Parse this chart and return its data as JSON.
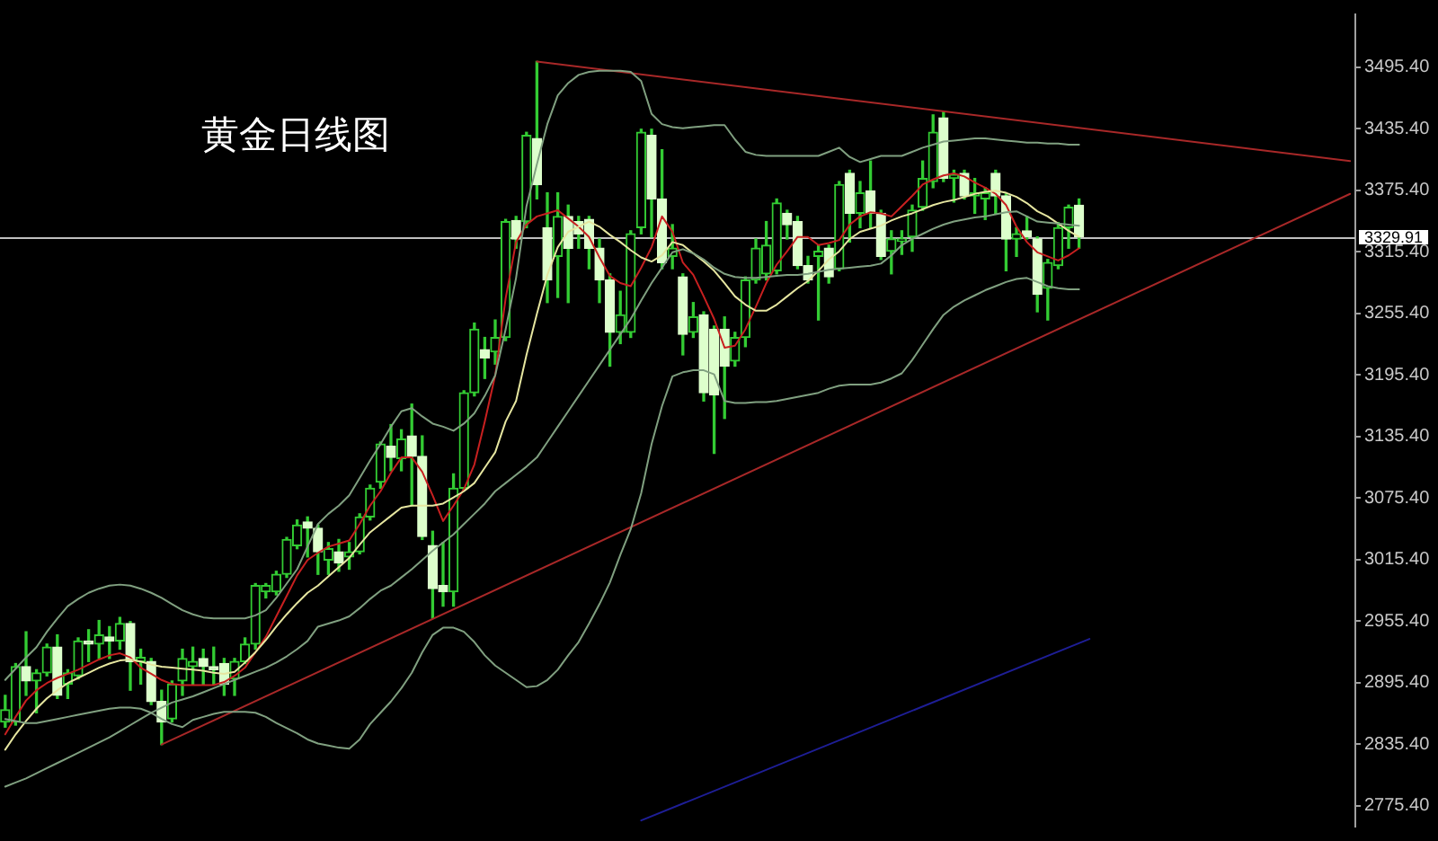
{
  "chart_data": {
    "type": "candlestick",
    "title": "黄金日线图",
    "categories": [
      null,
      null,
      null,
      null,
      null,
      null,
      null,
      null,
      null,
      null,
      null,
      null,
      null,
      null,
      null,
      null,
      null,
      null,
      null,
      null,
      null,
      null,
      null,
      null,
      null,
      null,
      null,
      null,
      null,
      null,
      null,
      null,
      null,
      null,
      null,
      null,
      null,
      null,
      null,
      null,
      null,
      null,
      null,
      null,
      null,
      null,
      null,
      null,
      null,
      null,
      null,
      null,
      null,
      null,
      null,
      null,
      null,
      null,
      null,
      null,
      null,
      null,
      null,
      null,
      null,
      null,
      null,
      null,
      null,
      null,
      null,
      null,
      null,
      null,
      null,
      null,
      null,
      null,
      null,
      null,
      null,
      null,
      null,
      null,
      null,
      null,
      null,
      null,
      null,
      null,
      null,
      null,
      null,
      null,
      null,
      null,
      null,
      null,
      null,
      null,
      null,
      null,
      null,
      null,
      null,
      null,
      null,
      null,
      null,
      null,
      null,
      null,
      null,
      null,
      null,
      null,
      null,
      null,
      null,
      null,
      null,
      null,
      null,
      null,
      null,
      null,
      null,
      null,
      null,
      null
    ],
    "ohlc": [
      [
        2857,
        2883,
        2852,
        2869
      ],
      [
        2857,
        2914,
        2854,
        2911
      ],
      [
        2911,
        2945,
        2883,
        2897
      ],
      [
        2897,
        2908,
        2866,
        2905
      ],
      [
        2905,
        2933,
        2902,
        2930
      ],
      [
        2930,
        2942,
        2880,
        2883
      ],
      [
        2894,
        2908,
        2880,
        2905
      ],
      [
        2902,
        2939,
        2899,
        2936
      ],
      [
        2936,
        2947,
        2916,
        2933
      ],
      [
        2933,
        2956,
        2919,
        2942
      ],
      [
        2940,
        2950,
        2919,
        2936
      ],
      [
        2936,
        2959,
        2928,
        2953
      ],
      [
        2953,
        2955,
        2888,
        2916
      ],
      [
        2916,
        2928,
        2894,
        2920
      ],
      [
        2916,
        2919,
        2874,
        2877
      ],
      [
        2877,
        2888,
        2835,
        2857
      ],
      [
        2860,
        2897,
        2857,
        2894
      ],
      [
        2897,
        2928,
        2883,
        2919
      ],
      [
        2911,
        2930,
        2894,
        2916
      ],
      [
        2919,
        2928,
        2894,
        2911
      ],
      [
        2911,
        2930,
        2894,
        2908
      ],
      [
        2914,
        2919,
        2883,
        2894
      ],
      [
        2899,
        2919,
        2883,
        2916
      ],
      [
        2916,
        2939,
        2914,
        2933
      ],
      [
        2933,
        2992,
        2928,
        2990
      ],
      [
        2984,
        2992,
        2978,
        2990
      ],
      [
        2984,
        3004,
        2981,
        3001
      ],
      [
        3001,
        3037,
        2998,
        3035
      ],
      [
        3029,
        3054,
        3026,
        3049
      ],
      [
        3052,
        3057,
        3018,
        3046
      ],
      [
        3046,
        3049,
        3001,
        3023
      ],
      [
        3015,
        3032,
        3001,
        3026
      ],
      [
        3023,
        3035,
        3004,
        3012
      ],
      [
        3018,
        3032,
        3006,
        3023
      ],
      [
        3023,
        3060,
        3021,
        3057
      ],
      [
        3057,
        3088,
        3054,
        3085
      ],
      [
        3091,
        3130,
        3085,
        3128
      ],
      [
        3126,
        3147,
        3102,
        3115
      ],
      [
        3114,
        3142,
        3102,
        3133
      ],
      [
        3136,
        3167,
        3068,
        3116
      ],
      [
        3116,
        3136,
        3035,
        3038
      ],
      [
        3029,
        3043,
        2958,
        2987
      ],
      [
        2990,
        3032,
        2970,
        2984
      ],
      [
        2984,
        3099,
        2970,
        3085
      ],
      [
        3085,
        3180,
        3083,
        3178
      ],
      [
        3178,
        3246,
        3175,
        3240
      ],
      [
        3220,
        3232,
        3192,
        3212
      ],
      [
        3218,
        3249,
        3206,
        3232
      ],
      [
        3232,
        3347,
        3229,
        3345
      ],
      [
        3346,
        3350,
        3319,
        3328
      ],
      [
        3345,
        3432,
        3339,
        3429
      ],
      [
        3426,
        3501,
        3367,
        3381
      ],
      [
        3339,
        3373,
        3266,
        3288
      ],
      [
        3311,
        3373,
        3271,
        3350
      ],
      [
        3350,
        3361,
        3266,
        3319
      ],
      [
        3345,
        3350,
        3319,
        3333
      ],
      [
        3347,
        3350,
        3299,
        3319
      ],
      [
        3319,
        3328,
        3266,
        3288
      ],
      [
        3288,
        3294,
        3204,
        3237
      ],
      [
        3237,
        3277,
        3226,
        3254
      ],
      [
        3237,
        3336,
        3232,
        3333
      ],
      [
        3339,
        3435,
        3333,
        3432
      ],
      [
        3429,
        3435,
        3330,
        3367
      ],
      [
        3367,
        3415,
        3299,
        3305
      ],
      [
        3311,
        3342,
        3299,
        3319
      ],
      [
        3291,
        3294,
        3215,
        3235
      ],
      [
        3237,
        3266,
        3232,
        3252
      ],
      [
        3254,
        3257,
        3170,
        3178
      ],
      [
        3240,
        3243,
        3119,
        3176
      ],
      [
        3240,
        3252,
        3153,
        3204
      ],
      [
        3209,
        3237,
        3204,
        3232
      ],
      [
        3232,
        3291,
        3223,
        3288
      ],
      [
        3288,
        3328,
        3285,
        3319
      ],
      [
        3294,
        3345,
        3288,
        3322
      ],
      [
        3297,
        3367,
        3294,
        3363
      ],
      [
        3353,
        3356,
        3328,
        3342
      ],
      [
        3345,
        3350,
        3299,
        3302
      ],
      [
        3302,
        3311,
        3285,
        3288
      ],
      [
        3311,
        3322,
        3249,
        3316
      ],
      [
        3319,
        3322,
        3285,
        3291
      ],
      [
        3299,
        3384,
        3297,
        3381
      ],
      [
        3392,
        3395,
        3325,
        3353
      ],
      [
        3353,
        3384,
        3339,
        3373
      ],
      [
        3375,
        3404,
        3339,
        3353
      ],
      [
        3353,
        3356,
        3308,
        3311
      ],
      [
        3316,
        3336,
        3294,
        3328
      ],
      [
        3326,
        3336,
        3313,
        3328
      ],
      [
        3330,
        3361,
        3316,
        3356
      ],
      [
        3359,
        3404,
        3356,
        3387
      ],
      [
        3384,
        3449,
        3378,
        3432
      ],
      [
        3446,
        3452,
        3384,
        3387
      ],
      [
        3387,
        3395,
        3364,
        3391
      ],
      [
        3392,
        3395,
        3367,
        3370
      ],
      [
        3370,
        3387,
        3353,
        3373
      ],
      [
        3367,
        3378,
        3347,
        3373
      ],
      [
        3392,
        3395,
        3353,
        3370
      ],
      [
        3370,
        3372,
        3297,
        3328
      ],
      [
        3328,
        3339,
        3311,
        3333
      ],
      [
        3336,
        3350,
        3328,
        3330
      ],
      [
        3328,
        3330,
        3257,
        3274
      ],
      [
        3280,
        3308,
        3249,
        3305
      ],
      [
        3302,
        3344,
        3299,
        3339
      ],
      [
        3339,
        3361,
        3319,
        3359
      ],
      [
        3361,
        3367,
        3319,
        3330
      ],
      null,
      null,
      null,
      null,
      null,
      null,
      null,
      null,
      null,
      null,
      null,
      null,
      null,
      null,
      null,
      null,
      null,
      null,
      null,
      null,
      null,
      null,
      null,
      null,
      null,
      null
    ],
    "color": "#33cc33",
    "colors": [
      "#33cc33",
      "#33cc33",
      "#ddffcc",
      "#33cc33",
      "#33cc33",
      "#ddffcc",
      "#33cc33",
      "#33cc33",
      "#ddffcc",
      "#33cc33",
      "#ddffcc",
      "#33cc33",
      "#ddffcc",
      "#33cc33",
      "#ddffcc",
      "#ddffcc",
      "#33cc33",
      "#33cc33",
      "#33cc33",
      "#ddffcc",
      "#ddffcc",
      "#ddffcc",
      "#33cc33",
      "#33cc33",
      "#33cc33",
      "#33cc33",
      "#33cc33",
      "#33cc33",
      "#33cc33",
      "#ddffcc",
      "#ddffcc",
      "#33cc33",
      "#ddffcc",
      "#33cc33",
      "#33cc33",
      "#33cc33",
      "#33cc33",
      "#ddffcc",
      "#33cc33",
      "#ddffcc",
      "#ddffcc",
      "#ddffcc",
      "#ddffcc",
      "#33cc33",
      "#33cc33",
      "#33cc33",
      "#ddffcc",
      "#33cc33",
      "#33cc33",
      "#ddffcc",
      "#33cc33",
      "#ddffcc",
      "#ddffcc",
      "#33cc33",
      "#ddffcc",
      "#ddffcc",
      "#ddffcc",
      "#ddffcc",
      "#ddffcc",
      "#33cc33",
      "#33cc33",
      "#33cc33",
      "#ddffcc",
      "#ddffcc",
      "#33cc33",
      "#ddffcc",
      "#33cc33",
      "#ddffcc",
      "#ddffcc",
      "#ddffcc",
      "#33cc33",
      "#33cc33",
      "#33cc33",
      "#33cc33",
      "#33cc33",
      "#ddffcc",
      "#ddffcc",
      "#ddffcc",
      "#33cc33",
      "#ddffcc",
      "#33cc33",
      "#ddffcc",
      "#33cc33",
      "#ddffcc",
      "#ddffcc",
      "#33cc33",
      "#33cc33",
      "#33cc33",
      "#33cc33",
      "#33cc33",
      "#ddffcc",
      "#33cc33",
      "#ddffcc",
      "#33cc33",
      "#33cc33",
      "#ddffcc",
      "#ddffcc",
      "#33cc33",
      "#ddffcc",
      "#ddffcc",
      "#33cc33",
      "#33cc33",
      "#33cc33",
      "#ddffcc",
      null,
      null,
      null,
      null,
      null,
      null,
      null,
      null,
      null,
      null,
      null,
      null,
      null,
      null,
      null,
      null,
      null,
      null,
      null,
      null,
      null,
      null,
      null,
      null,
      null,
      null
    ],
    "series": [
      {
        "type": "line",
        "color": "#80a080",
        "values": [
          2898,
          2909,
          2920,
          2930,
          2945,
          2958,
          2970,
          2977,
          2983,
          2987,
          2990,
          2991,
          2990,
          2987,
          2983,
          2978,
          2972,
          2966,
          2962,
          2959,
          2958,
          2958,
          2958,
          2958,
          2961,
          2966,
          2978,
          2992,
          3006,
          3028,
          3050,
          3060,
          3068,
          3078,
          3095,
          3112,
          3128,
          3145,
          3160,
          3163,
          3155,
          3148,
          3145,
          3141,
          3148,
          3158,
          3175,
          3195,
          3240,
          3290,
          3360,
          3401,
          3440,
          3468,
          3480,
          3488,
          3491,
          3492,
          3492,
          3492,
          3491,
          3482,
          3450,
          3440,
          3437,
          3436,
          3437,
          3438,
          3439,
          3439,
          3425,
          3413,
          3410,
          3409,
          3409,
          3409,
          3409,
          3409,
          3409,
          3413,
          3417,
          3408,
          3403,
          3406,
          3409,
          3409,
          3409,
          3413,
          3417,
          3420,
          3423,
          3424,
          3425,
          3426,
          3426,
          3425,
          3424,
          3423,
          3422,
          3422,
          3421,
          3421,
          3420,
          3420,
          null,
          null,
          null,
          null,
          null,
          null,
          null,
          null,
          null,
          null,
          null,
          null,
          null,
          null,
          null,
          null,
          null,
          null,
          null,
          null,
          null,
          null,
          null,
          null,
          null,
          null
        ]
      },
      {
        "type": "line",
        "color": "#80a080",
        "values": [
          2794,
          2798,
          2802,
          2807,
          2812,
          2817,
          2822,
          2827,
          2832,
          2837,
          2842,
          2848,
          2854,
          2860,
          2866,
          2871,
          2876,
          2879,
          2882,
          2886,
          2890,
          2894,
          2898,
          2902,
          2906,
          2910,
          2915,
          2921,
          2928,
          2936,
          2950,
          2953,
          2956,
          2960,
          2968,
          2977,
          2985,
          2990,
          2998,
          3006,
          3015,
          3024,
          3032,
          3040,
          3050,
          3060,
          3070,
          3082,
          3090,
          3098,
          3106,
          3115,
          3130,
          3145,
          3160,
          3175,
          3190,
          3205,
          3220,
          3235,
          3250,
          3268,
          3285,
          3300,
          3315,
          3318,
          3314,
          3308,
          3300,
          3294,
          3291,
          3290,
          3290,
          3291,
          3292,
          3293,
          3293,
          3294,
          3296,
          3298,
          3299,
          3300,
          3301,
          3302,
          3304,
          3312,
          3322,
          3328,
          3333,
          3338,
          3342,
          3345,
          3347,
          3349,
          3350,
          3352,
          3354,
          3355,
          3350,
          3345,
          3344,
          3343,
          3342,
          3341,
          null,
          null,
          null,
          null,
          null,
          null,
          null,
          null,
          null,
          null,
          null,
          null,
          null,
          null,
          null,
          null,
          null,
          null,
          null,
          null,
          null,
          null,
          null,
          null,
          null,
          null
        ]
      },
      {
        "type": "line",
        "color": "#80a080",
        "values": [
          2860,
          2858,
          2856,
          2856,
          2858,
          2860,
          2862,
          2864,
          2866,
          2868,
          2870,
          2871,
          2871,
          2870,
          2866,
          2860,
          2855,
          2852,
          2859,
          2862,
          2865,
          2867,
          2867,
          2867,
          2866,
          2862,
          2856,
          2851,
          2846,
          2840,
          2836,
          2834,
          2832,
          2831,
          2840,
          2855,
          2866,
          2877,
          2890,
          2905,
          2925,
          2942,
          2949,
          2949,
          2945,
          2935,
          2922,
          2912,
          2905,
          2898,
          2891,
          2892,
          2898,
          2908,
          2922,
          2935,
          2953,
          2972,
          2993,
          3020,
          3045,
          3080,
          3128,
          3165,
          3194,
          3198,
          3200,
          3200,
          3196,
          3170,
          3168,
          3168,
          3169,
          3169,
          3170,
          3172,
          3174,
          3176,
          3178,
          3182,
          3185,
          3186,
          3186,
          3186,
          3188,
          3192,
          3197,
          3210,
          3225,
          3240,
          3254,
          3262,
          3268,
          3273,
          3278,
          3282,
          3286,
          3289,
          3290,
          3286,
          3282,
          3280,
          3279,
          3279,
          null,
          null,
          null,
          null,
          null,
          null,
          null,
          null,
          null,
          null,
          null,
          null,
          null,
          null,
          null,
          null,
          null,
          null,
          null,
          null,
          null,
          null,
          null,
          null,
          null,
          null
        ]
      },
      {
        "type": "line",
        "color": "#e6e6a0",
        "values": [
          2830,
          2845,
          2858,
          2870,
          2880,
          2888,
          2895,
          2900,
          2905,
          2910,
          2914,
          2917,
          2918,
          2916,
          2913,
          2911,
          2910,
          2909,
          2908,
          2907,
          2905,
          2904,
          2906,
          2915,
          2925,
          2937,
          2950,
          2962,
          2973,
          2983,
          2990,
          2999,
          3008,
          3017,
          3030,
          3042,
          3050,
          3058,
          3066,
          3068,
          3068,
          3068,
          3070,
          3076,
          3082,
          3090,
          3105,
          3120,
          3150,
          3170,
          3215,
          3255,
          3293,
          3320,
          3335,
          3340,
          3345,
          3340,
          3332,
          3325,
          3317,
          3310,
          3306,
          3312,
          3325,
          3322,
          3314,
          3306,
          3297,
          3285,
          3272,
          3264,
          3258,
          3258,
          3264,
          3272,
          3280,
          3287,
          3297,
          3308,
          3316,
          3328,
          3335,
          3338,
          3341,
          3346,
          3350,
          3353,
          3357,
          3361,
          3364,
          3366,
          3369,
          3372,
          3374,
          3375,
          3373,
          3369,
          3363,
          3355,
          3350,
          3343,
          3336,
          3330,
          null,
          null,
          null,
          null,
          null,
          null,
          null,
          null,
          null,
          null,
          null,
          null,
          null,
          null,
          null,
          null,
          null,
          null,
          null,
          null,
          null,
          null,
          null,
          null,
          null,
          null
        ]
      },
      {
        "type": "line",
        "color": "#c82020",
        "values": [
          2845,
          2862,
          2878,
          2888,
          2895,
          2900,
          2904,
          2908,
          2913,
          2918,
          2922,
          2924,
          2920,
          2910,
          2904,
          2898,
          2894,
          2893,
          2893,
          2893,
          2893,
          2896,
          2902,
          2910,
          2925,
          2940,
          2960,
          2980,
          3000,
          3015,
          3022,
          3028,
          3031,
          3034,
          3050,
          3068,
          3082,
          3100,
          3115,
          3115,
          3101,
          3078,
          3053,
          3068,
          3084,
          3108,
          3150,
          3195,
          3270,
          3325,
          3342,
          3350,
          3353,
          3356,
          3348,
          3340,
          3330,
          3310,
          3292,
          3285,
          3282,
          3300,
          3320,
          3350,
          3335,
          3305,
          3293,
          3272,
          3250,
          3222,
          3224,
          3240,
          3262,
          3285,
          3303,
          3316,
          3330,
          3330,
          3322,
          3324,
          3327,
          3342,
          3350,
          3354,
          3353,
          3350,
          3360,
          3370,
          3381,
          3386,
          3390,
          3392,
          3389,
          3383,
          3378,
          3372,
          3361,
          3340,
          3325,
          3315,
          3311,
          3307,
          3312,
          3319,
          null,
          null,
          null,
          null,
          null,
          null,
          null,
          null,
          null,
          null,
          null,
          null,
          null,
          null,
          null,
          null,
          null,
          null,
          null,
          null,
          null,
          null,
          null,
          null,
          null,
          null
        ]
      },
      {
        "type": "line",
        "color": "#a82828",
        "values": [
          null,
          null,
          null,
          null,
          null,
          null,
          null,
          null,
          null,
          null,
          null,
          null,
          null,
          null,
          null,
          null,
          null,
          null,
          null,
          null,
          null,
          null,
          null,
          null,
          null,
          null,
          null,
          null,
          null,
          null,
          null,
          null,
          null,
          null,
          null,
          null,
          null,
          null,
          null,
          null,
          null,
          null,
          null,
          null,
          null,
          null,
          null,
          null,
          null,
          null,
          null,
          3501,
          null,
          null,
          null,
          null,
          null,
          null,
          null,
          null,
          null,
          null,
          null,
          null,
          null,
          null,
          null,
          null,
          null,
          null,
          null,
          null,
          null,
          null,
          null,
          null,
          null,
          null,
          null,
          null,
          null,
          null,
          null,
          null,
          null,
          null,
          null,
          null,
          null,
          null,
          null,
          null,
          null,
          null,
          null,
          null,
          null,
          null,
          null,
          null,
          null,
          null,
          null,
          null,
          null,
          null,
          null,
          null,
          null,
          null,
          null,
          null,
          null,
          null,
          null,
          null,
          null,
          null,
          null,
          null,
          null,
          null,
          null,
          null,
          null,
          null,
          null,
          null,
          null,
          3404
        ]
      },
      {
        "type": "line",
        "color": "#a82828",
        "values": [
          null,
          null,
          null,
          null,
          null,
          null,
          null,
          null,
          null,
          null,
          null,
          null,
          null,
          null,
          null,
          2835,
          null,
          null,
          null,
          null,
          null,
          null,
          null,
          null,
          null,
          null,
          null,
          null,
          null,
          null,
          null,
          null,
          null,
          null,
          null,
          null,
          null,
          null,
          null,
          null,
          null,
          null,
          null,
          null,
          null,
          null,
          null,
          null,
          null,
          null,
          null,
          null,
          null,
          null,
          null,
          null,
          null,
          null,
          null,
          null,
          null,
          null,
          null,
          null,
          null,
          null,
          null,
          null,
          null,
          null,
          null,
          null,
          null,
          null,
          null,
          null,
          null,
          null,
          null,
          null,
          null,
          null,
          null,
          null,
          null,
          null,
          null,
          null,
          null,
          null,
          null,
          null,
          null,
          null,
          null,
          null,
          null,
          null,
          null,
          null,
          null,
          null,
          null,
          null,
          null,
          null,
          null,
          null,
          null,
          null,
          null,
          null,
          null,
          null,
          null,
          null,
          null,
          null,
          null,
          null,
          null,
          null,
          null,
          null,
          null,
          null,
          null,
          null,
          null,
          3372
        ]
      },
      {
        "type": "line",
        "color": "#1e1e96",
        "values": [
          null,
          null,
          null,
          null,
          null,
          null,
          null,
          null,
          null,
          null,
          null,
          null,
          null,
          null,
          null,
          null,
          null,
          null,
          null,
          null,
          null,
          null,
          null,
          null,
          null,
          null,
          null,
          null,
          null,
          null,
          null,
          null,
          null,
          null,
          null,
          null,
          null,
          null,
          null,
          null,
          null,
          null,
          null,
          null,
          null,
          null,
          null,
          null,
          null,
          null,
          null,
          null,
          null,
          null,
          null,
          null,
          null,
          null,
          null,
          null,
          null,
          2761,
          null,
          null,
          null,
          null,
          null,
          null,
          null,
          null,
          null,
          null,
          null,
          null,
          null,
          null,
          null,
          null,
          null,
          null,
          null,
          null,
          null,
          null,
          null,
          null,
          null,
          null,
          null,
          null,
          null,
          null,
          null,
          null,
          null,
          null,
          null,
          null,
          null,
          null,
          null,
          null,
          null,
          null,
          2938,
          null,
          null,
          null,
          null,
          null,
          null,
          null,
          null,
          null,
          null,
          null,
          null,
          null,
          null,
          null,
          null,
          null,
          null,
          null,
          null,
          null,
          null,
          null,
          null,
          null
        ]
      }
    ],
    "ylim": [
      2755,
      3547
    ],
    "yticks": [
      {
        "value": 2775.4,
        "label": "2775.40"
      },
      {
        "value": 2835.4,
        "label": "2835.40"
      },
      {
        "value": 2895.4,
        "label": "2895.40"
      },
      {
        "value": 2955.4,
        "label": "2955.40"
      },
      {
        "value": 3015.4,
        "label": "3015.40"
      },
      {
        "value": 3075.4,
        "label": "3075.40"
      },
      {
        "value": 3135.4,
        "label": "3135.40"
      },
      {
        "value": 3195.4,
        "label": "3195.40"
      },
      {
        "value": 3255.4,
        "label": "3255.40"
      },
      {
        "value": 3315.4,
        "label": "3315.40"
      },
      {
        "value": 3375.4,
        "label": "3375.40"
      },
      {
        "value": 3435.4,
        "label": "3435.40"
      },
      {
        "value": 3495.4,
        "label": "3495.40"
      }
    ],
    "ref_lines": [
      {
        "axis": "y",
        "value": 3329.91,
        "label": "3329.91",
        "color": "#c0c0c0"
      }
    ],
    "tick_labels": "y"
  }
}
